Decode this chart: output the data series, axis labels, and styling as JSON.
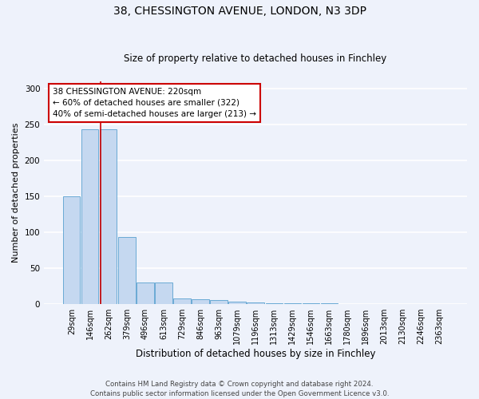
{
  "title1": "38, CHESSINGTON AVENUE, LONDON, N3 3DP",
  "title2": "Size of property relative to detached houses in Finchley",
  "xlabel": "Distribution of detached houses by size in Finchley",
  "ylabel": "Number of detached properties",
  "bar_values": [
    150,
    243,
    243,
    93,
    30,
    30,
    8,
    7,
    6,
    3,
    2,
    1,
    1,
    1,
    1,
    0,
    0,
    0,
    0,
    0,
    0
  ],
  "bin_labels": [
    "29sqm",
    "146sqm",
    "262sqm",
    "379sqm",
    "496sqm",
    "613sqm",
    "729sqm",
    "846sqm",
    "963sqm",
    "1079sqm",
    "1196sqm",
    "1313sqm",
    "1429sqm",
    "1546sqm",
    "1663sqm",
    "1780sqm",
    "1896sqm",
    "2013sqm",
    "2130sqm",
    "2246sqm",
    "2363sqm"
  ],
  "bar_color": "#c5d8f0",
  "bar_edge_color": "#6aaad4",
  "red_line_x": 1.55,
  "annotation_text": "38 CHESSINGTON AVENUE: 220sqm\n← 60% of detached houses are smaller (322)\n40% of semi-detached houses are larger (213) →",
  "annotation_box_color": "#ffffff",
  "annotation_box_edge": "#cc0000",
  "footer1": "Contains HM Land Registry data © Crown copyright and database right 2024.",
  "footer2": "Contains public sector information licensed under the Open Government Licence v3.0.",
  "ylim": [
    0,
    310
  ],
  "yticks": [
    0,
    50,
    100,
    150,
    200,
    250,
    300
  ],
  "bg_color": "#eef2fb",
  "grid_color": "#ffffff",
  "title1_fontsize": 10,
  "title2_fontsize": 8.5,
  "ylabel_fontsize": 8,
  "xlabel_fontsize": 8.5,
  "tick_fontsize": 7,
  "annotation_fontsize": 7.5,
  "footer_fontsize": 6.2
}
